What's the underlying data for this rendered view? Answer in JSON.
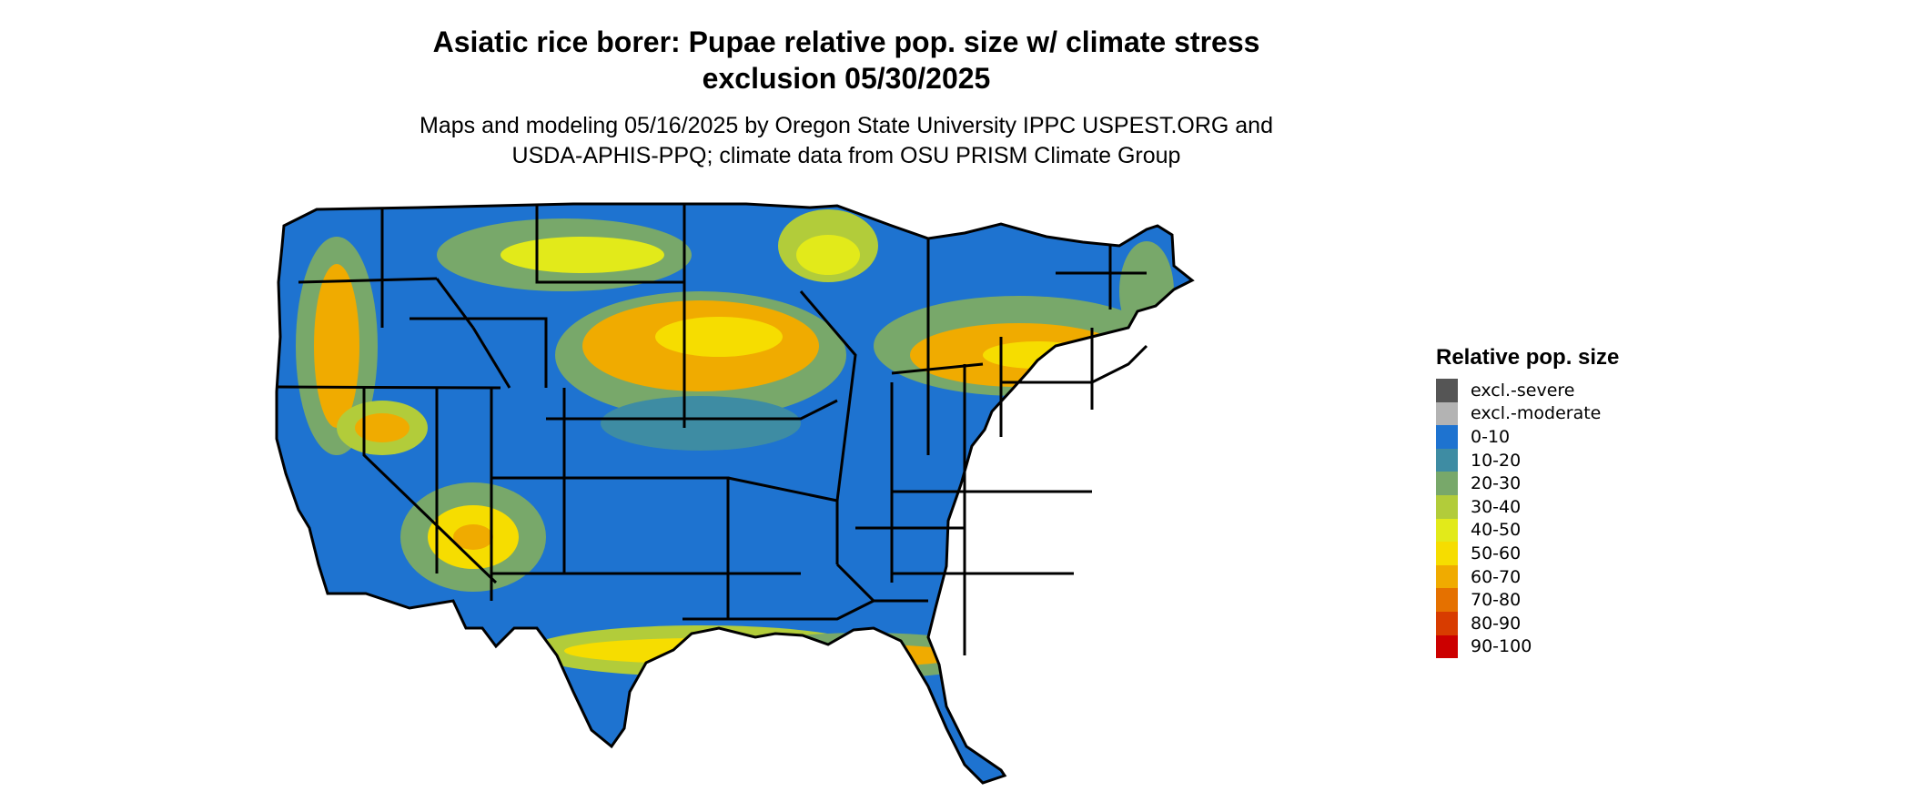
{
  "title_line1": "Asiatic rice borer: Pupae relative pop. size w/ climate stress",
  "title_line2": "exclusion 05/30/2025",
  "subtitle_line1": "Maps and modeling 05/16/2025 by Oregon State University IPPC USPEST.ORG and",
  "subtitle_line2": "USDA-APHIS-PPQ; climate data from OSU PRISM Climate Group",
  "legend": {
    "title": "Relative pop. size",
    "items": [
      {
        "label": "excl.-severe",
        "color": "#555555"
      },
      {
        "label": "excl.-moderate",
        "color": "#b3b3b3"
      },
      {
        "label": "0-10",
        "color": "#1e73d0"
      },
      {
        "label": "10-20",
        "color": "#3e8ca3"
      },
      {
        "label": "20-30",
        "color": "#78a86a"
      },
      {
        "label": "30-40",
        "color": "#b2cc3a"
      },
      {
        "label": "40-50",
        "color": "#e2ea1a"
      },
      {
        "label": "50-60",
        "color": "#f6dd00"
      },
      {
        "label": "60-70",
        "color": "#f0ab00"
      },
      {
        "label": "70-80",
        "color": "#e57100"
      },
      {
        "label": "80-90",
        "color": "#d83c00"
      },
      {
        "label": "90-100",
        "color": "#cc0000"
      }
    ]
  }
}
